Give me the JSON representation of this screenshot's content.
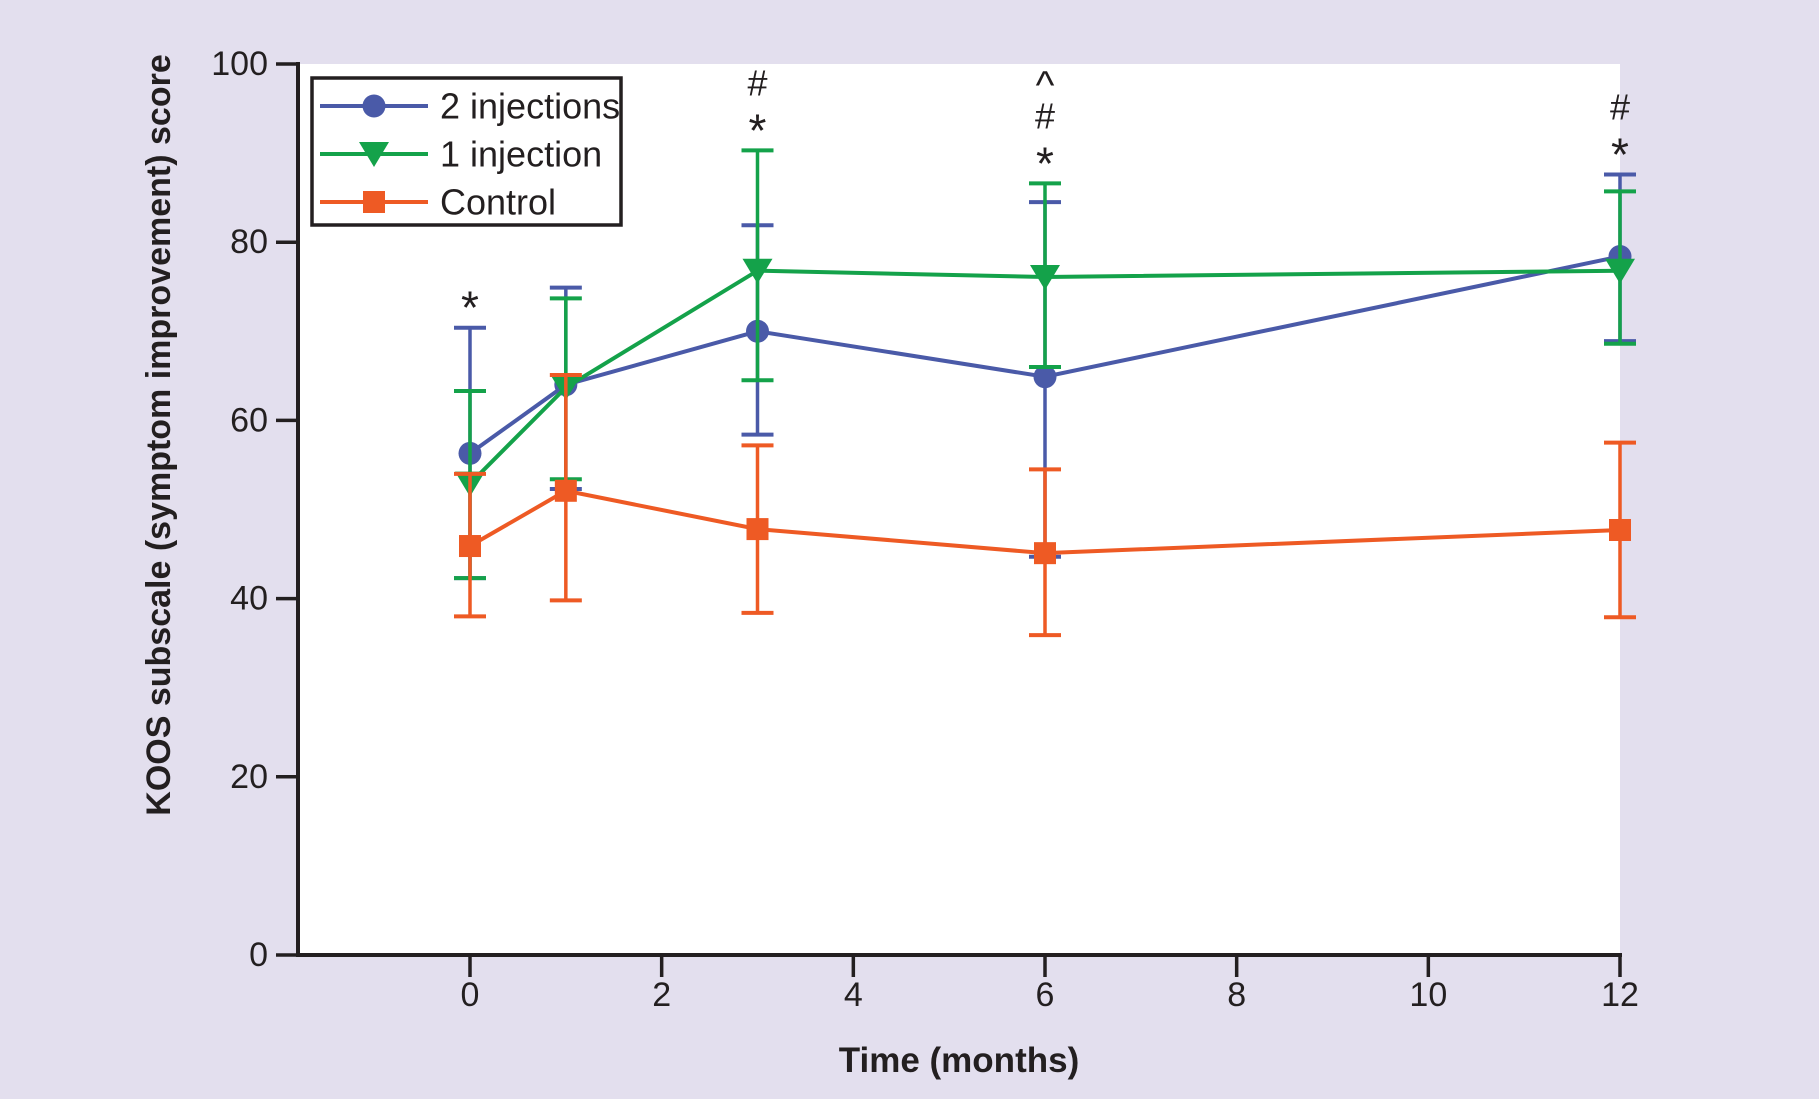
{
  "figure": {
    "background_color": "#e3dfee",
    "plot_background_color": "#ffffff",
    "axis_color": "#231f20",
    "text_color": "#231f20"
  },
  "chart_data": {
    "type": "line",
    "title": "",
    "xlabel": "Time (months)",
    "ylabel": "KOOS subscale (symptom improvement) score",
    "x_months": [
      0,
      1,
      3,
      6,
      12
    ],
    "x_ticks": [
      0,
      2,
      4,
      6,
      8,
      10,
      12
    ],
    "y_ticks": [
      0,
      20,
      40,
      60,
      80,
      100
    ],
    "xlim": [
      -1.8,
      12
    ],
    "ylim": [
      0,
      100
    ],
    "grid": false,
    "legend_position": "upper-left",
    "error_bars": "caps",
    "series": [
      {
        "name": "2 injections",
        "color": "#4a5aa8",
        "marker": "circle",
        "x": [
          0,
          1,
          3,
          6,
          12
        ],
        "y": [
          56.3,
          64.0,
          70.0,
          64.9,
          78.4
        ],
        "err_lo": [
          42.3,
          52.3,
          58.4,
          44.7,
          68.9
        ],
        "err_hi": [
          70.4,
          74.9,
          81.9,
          84.5,
          87.6
        ]
      },
      {
        "name": "1 injection",
        "color": "#14a24a",
        "marker": "triangle-down",
        "x": [
          0,
          1,
          3,
          6,
          12
        ],
        "y": [
          52.9,
          63.7,
          76.8,
          76.1,
          76.8
        ],
        "err_lo": [
          42.3,
          53.4,
          64.5,
          66.0,
          68.6
        ],
        "err_hi": [
          63.3,
          73.7,
          90.3,
          86.6,
          85.7
        ]
      },
      {
        "name": "Control",
        "color": "#ee5a24",
        "marker": "square",
        "x": [
          0,
          1,
          3,
          6,
          12
        ],
        "y": [
          45.9,
          52.1,
          47.8,
          45.1,
          47.7
        ],
        "err_lo": [
          38.0,
          39.8,
          38.4,
          35.9,
          37.9
        ],
        "err_hi": [
          54.0,
          65.1,
          57.2,
          54.5,
          57.5
        ]
      }
    ],
    "annotations": [
      {
        "month": 0,
        "symbols": [
          "*"
        ]
      },
      {
        "month": 3,
        "symbols": [
          "#",
          "*"
        ]
      },
      {
        "month": 6,
        "symbols": [
          "^",
          "#",
          "*"
        ]
      },
      {
        "month": 12,
        "symbols": [
          "#",
          "*"
        ]
      }
    ]
  }
}
